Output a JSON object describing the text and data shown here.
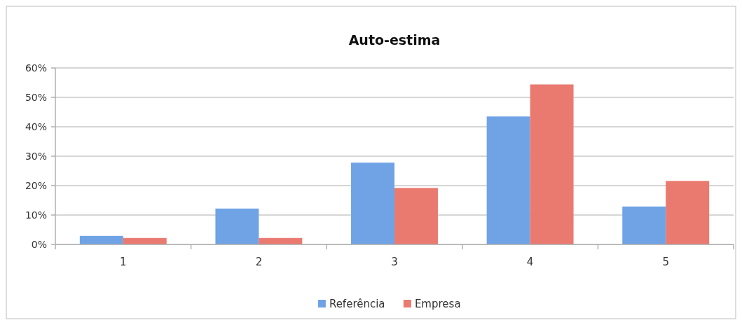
{
  "chart_data": {
    "type": "bar",
    "title": "Auto-estima",
    "categories": [
      "1",
      "2",
      "3",
      "4",
      "5"
    ],
    "series": [
      {
        "name": "Referência",
        "color": "#6fa3e6",
        "values": [
          2.9,
          12.2,
          27.8,
          43.5,
          12.9
        ]
      },
      {
        "name": "Empresa",
        "color": "#ea7a70",
        "values": [
          2.2,
          2.2,
          19.2,
          54.4,
          21.6
        ]
      }
    ],
    "ylim": [
      0,
      60
    ],
    "yticks": [
      {
        "value": 0,
        "label": "0%"
      },
      {
        "value": 10,
        "label": "10%"
      },
      {
        "value": 20,
        "label": "20%"
      },
      {
        "value": 30,
        "label": "30%"
      },
      {
        "value": 40,
        "label": "40%"
      },
      {
        "value": 50,
        "label": "50%"
      },
      {
        "value": 60,
        "label": "60%"
      }
    ],
    "grid": "y",
    "legend": "bottom"
  }
}
